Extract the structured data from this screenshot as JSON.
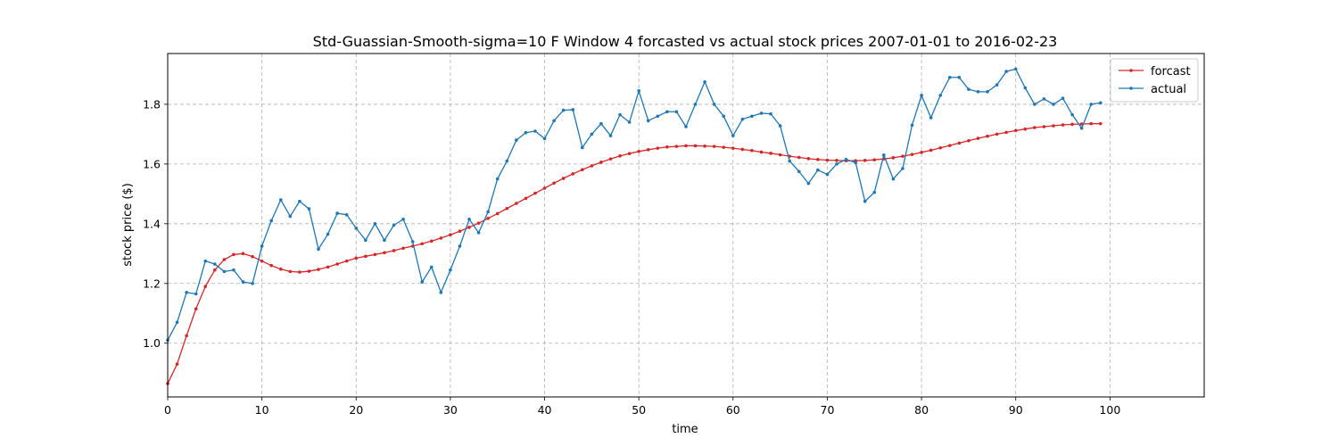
{
  "chart_data": {
    "type": "line",
    "title": "Std-Guassian-Smooth-sigma=10 F Window 4 forcasted vs actual stock prices 2007-01-01 to 2016-02-23",
    "xlabel": "time",
    "ylabel": "stock price ($)",
    "xlim": [
      0,
      110
    ],
    "ylim": [
      0.82,
      1.97
    ],
    "xticks": [
      0,
      10,
      20,
      30,
      40,
      50,
      60,
      70,
      80,
      90,
      100
    ],
    "xtick_labels": [
      "0",
      "10",
      "20",
      "30",
      "40",
      "50",
      "60",
      "70",
      "80",
      "90",
      "100"
    ],
    "yticks": [
      1.0,
      1.2,
      1.4,
      1.6,
      1.8
    ],
    "ytick_labels": [
      "1.0",
      "1.2",
      "1.4",
      "1.6",
      "1.8"
    ],
    "grid": true,
    "legend_position": "top-right",
    "series": [
      {
        "name": "forcast",
        "color": "#d62728",
        "values": [
          0.865,
          0.93,
          1.025,
          1.115,
          1.19,
          1.245,
          1.28,
          1.297,
          1.3,
          1.29,
          1.275,
          1.26,
          1.248,
          1.24,
          1.238,
          1.241,
          1.247,
          1.255,
          1.265,
          1.275,
          1.285,
          1.291,
          1.297,
          1.303,
          1.31,
          1.318,
          1.325,
          1.333,
          1.342,
          1.352,
          1.363,
          1.375,
          1.388,
          1.402,
          1.418,
          1.434,
          1.451,
          1.468,
          1.485,
          1.502,
          1.519,
          1.536,
          1.552,
          1.567,
          1.581,
          1.594,
          1.606,
          1.617,
          1.627,
          1.635,
          1.642,
          1.648,
          1.653,
          1.657,
          1.659,
          1.661,
          1.661,
          1.66,
          1.659,
          1.656,
          1.653,
          1.649,
          1.645,
          1.64,
          1.636,
          1.631,
          1.626,
          1.622,
          1.618,
          1.615,
          1.613,
          1.612,
          1.611,
          1.611,
          1.612,
          1.614,
          1.617,
          1.621,
          1.626,
          1.632,
          1.639,
          1.646,
          1.654,
          1.662,
          1.67,
          1.678,
          1.686,
          1.693,
          1.7,
          1.706,
          1.712,
          1.717,
          1.722,
          1.725,
          1.728,
          1.731,
          1.733,
          1.734,
          1.735,
          1.735
        ]
      },
      {
        "name": "actual",
        "color": "#1f77b4",
        "values": [
          1.01,
          1.07,
          1.17,
          1.165,
          1.275,
          1.265,
          1.24,
          1.245,
          1.205,
          1.2,
          1.325,
          1.41,
          1.48,
          1.425,
          1.475,
          1.45,
          1.315,
          1.365,
          1.435,
          1.43,
          1.385,
          1.345,
          1.4,
          1.345,
          1.395,
          1.415,
          1.34,
          1.205,
          1.255,
          1.17,
          1.245,
          1.325,
          1.415,
          1.37,
          1.44,
          1.55,
          1.61,
          1.68,
          1.705,
          1.71,
          1.685,
          1.745,
          1.78,
          1.782,
          1.655,
          1.7,
          1.735,
          1.695,
          1.765,
          1.74,
          1.845,
          1.745,
          1.76,
          1.775,
          1.775,
          1.725,
          1.8,
          1.875,
          1.8,
          1.76,
          1.695,
          1.75,
          1.76,
          1.77,
          1.768,
          1.728,
          1.61,
          1.575,
          1.535,
          1.58,
          1.565,
          1.6,
          1.615,
          1.605,
          1.475,
          1.505,
          1.63,
          1.55,
          1.585,
          1.73,
          1.83,
          1.755,
          1.83,
          1.89,
          1.89,
          1.85,
          1.842,
          1.842,
          1.865,
          1.91,
          1.918,
          1.855,
          1.8,
          1.818,
          1.8,
          1.82,
          1.765,
          1.72,
          1.8,
          1.805
        ]
      }
    ]
  }
}
